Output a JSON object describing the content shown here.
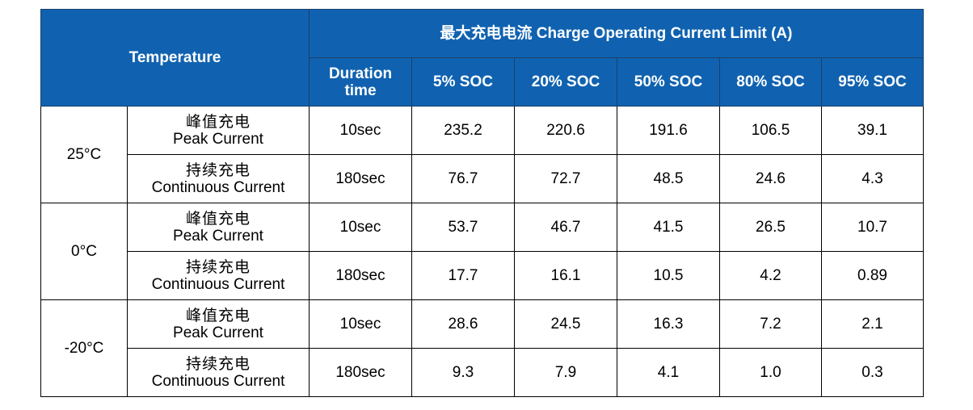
{
  "header": {
    "temperature": "Temperature",
    "limit_title": "最大充电电流 Charge Operating Current Limit (A)",
    "duration_line1": "Duration",
    "duration_line2": "time",
    "soc": [
      "5% SOC",
      "20% SOC",
      "50% SOC",
      "80% SOC",
      "95% SOC"
    ]
  },
  "groups": [
    {
      "temp": "25°C",
      "rows": [
        {
          "type_cn": "峰值充电",
          "type_en": "Peak Current",
          "duration": "10sec",
          "values": [
            "235.2",
            "220.6",
            "191.6",
            "106.5",
            "39.1"
          ]
        },
        {
          "type_cn": "持续充电",
          "type_en": "Continuous Current",
          "duration": "180sec",
          "values": [
            "76.7",
            "72.7",
            "48.5",
            "24.6",
            "4.3"
          ]
        }
      ]
    },
    {
      "temp": "0°C",
      "rows": [
        {
          "type_cn": "峰值充电",
          "type_en": "Peak Current",
          "duration": "10sec",
          "values": [
            "53.7",
            "46.7",
            "41.5",
            "26.5",
            "10.7"
          ]
        },
        {
          "type_cn": "持续充电",
          "type_en": "Continuous Current",
          "duration": "180sec",
          "values": [
            "17.7",
            "16.1",
            "10.5",
            "4.2",
            "0.89"
          ]
        }
      ]
    },
    {
      "temp": "-20°C",
      "rows": [
        {
          "type_cn": "峰值充电",
          "type_en": "Peak Current",
          "duration": "10sec",
          "values": [
            "28.6",
            "24.5",
            "16.3",
            "7.2",
            "2.1"
          ]
        },
        {
          "type_cn": "持续充电",
          "type_en": "Continuous Current",
          "duration": "180sec",
          "values": [
            "9.3",
            "7.9",
            "4.1",
            "1.0",
            "0.3"
          ]
        }
      ]
    }
  ]
}
